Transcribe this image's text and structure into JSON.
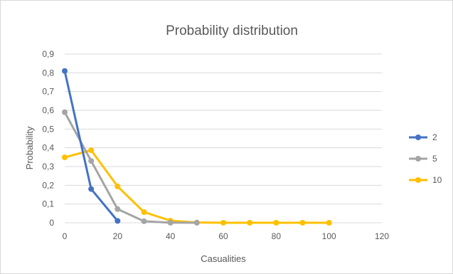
{
  "chart_data": {
    "type": "line",
    "title": "Probability distribution",
    "xlabel": "Casualities",
    "ylabel": "Probability",
    "xlim": [
      0,
      120
    ],
    "ylim": [
      0,
      0.9
    ],
    "x_ticks": [
      "0",
      "20",
      "40",
      "60",
      "80",
      "100",
      "120"
    ],
    "y_ticks": [
      "0",
      "0,1",
      "0,2",
      "0,3",
      "0,4",
      "0,5",
      "0,6",
      "0,7",
      "0,8",
      "0,9"
    ],
    "grid": "horizontal",
    "legend_position": "right",
    "series": [
      {
        "name": "2",
        "color": "#4472c4",
        "x": [
          0,
          10,
          20
        ],
        "y": [
          0.81,
          0.18,
          0.01
        ]
      },
      {
        "name": "5",
        "color": "#a5a5a5",
        "x": [
          0,
          10,
          20,
          30,
          40,
          50
        ],
        "y": [
          0.59,
          0.33,
          0.073,
          0.008,
          0.0005,
          0.0
        ]
      },
      {
        "name": "10",
        "color": "#ffc000",
        "x": [
          0,
          10,
          20,
          30,
          40,
          50,
          60,
          70,
          80,
          90,
          100
        ],
        "y": [
          0.349,
          0.387,
          0.194,
          0.057,
          0.011,
          0.0015,
          0.0001,
          0.0,
          0.0,
          0.0,
          0.0
        ]
      }
    ]
  }
}
